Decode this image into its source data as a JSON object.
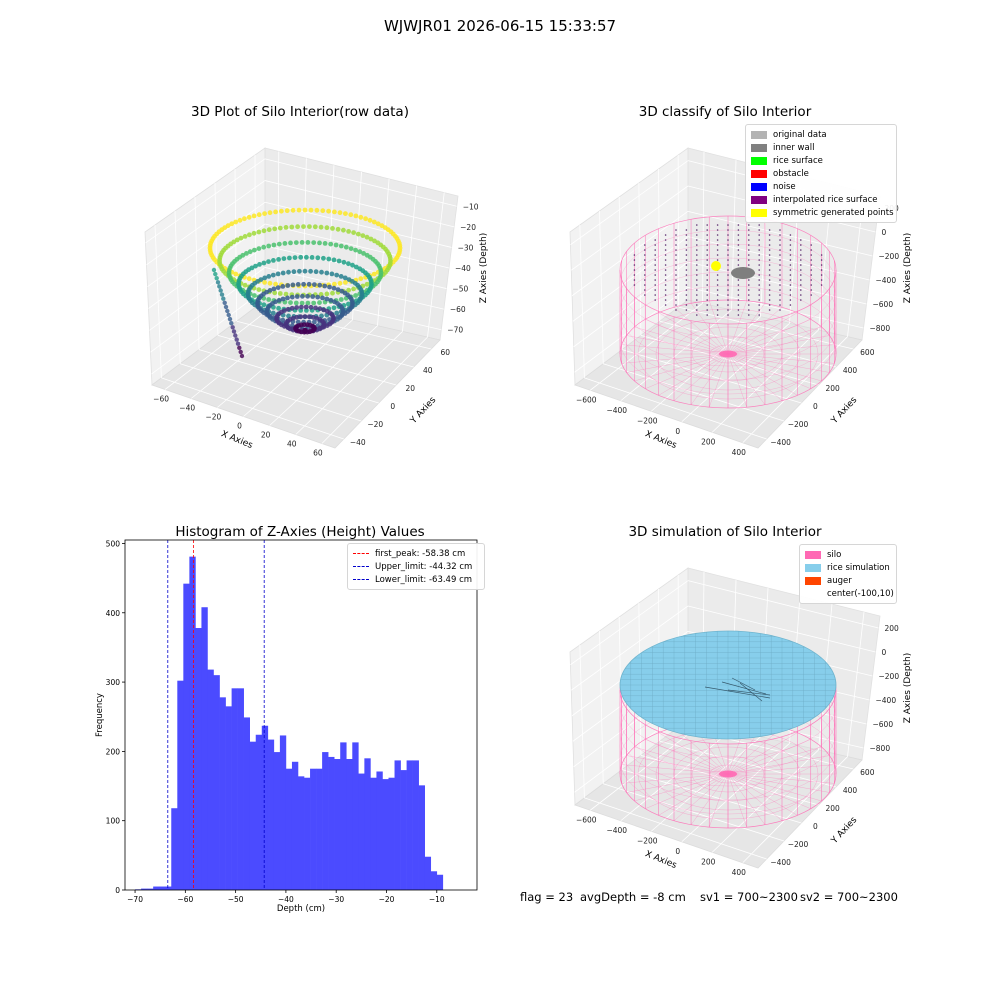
{
  "figure": {
    "suptitle": "WJWJR01 2026-06-15 15:33:57",
    "footer": {
      "flag": "flag = 23",
      "avg_depth": "avgDepth = -8 cm",
      "sv1": "sv1 = 700~2300",
      "sv2": "sv2 = 700~2300"
    }
  },
  "colors": {
    "silo": "#ff69b4",
    "histogram_bar": "#4b4bff",
    "first_peak_line": "#ff0000",
    "limit_lines": "#0000cc",
    "rice_simulation": "#87ceeb",
    "auger": "#ff4500"
  },
  "chart_data": [
    {
      "type": "scatter",
      "projection": "3d",
      "title": "3D Plot of Silo Interior(row data)",
      "xlabel": "X Axies",
      "ylabel": "Y Axies",
      "zlabel": "Z Axies (Depth)",
      "x_ticks": [
        "−60",
        "−40",
        "−20",
        "0",
        "20",
        "40",
        "60"
      ],
      "y_ticks": [
        "−40",
        "−20",
        "0",
        "20",
        "40",
        "60"
      ],
      "z_ticks": [
        "−70",
        "−60",
        "−50",
        "−40",
        "−30",
        "−20",
        "−10"
      ],
      "xlim": [
        -70,
        65
      ],
      "ylim": [
        -50,
        65
      ],
      "zlim": [
        -75,
        -5
      ],
      "colormap": "viridis",
      "description_points": "bowl-shaped point cloud of the silo interior, deepest near the centre at about -70 cm, rim at about -10 cm"
    },
    {
      "type": "scatter",
      "projection": "3d",
      "title": "3D classify of Silo Interior",
      "xlabel": "X Axies",
      "ylabel": "Y Axies",
      "zlabel": "Z Axies (Depth)",
      "x_ticks": [
        "−600",
        "−400",
        "−200",
        "0",
        "200",
        "400"
      ],
      "y_ticks": [
        "−400",
        "−200",
        "0",
        "200",
        "400",
        "600"
      ],
      "z_ticks": [
        "−800",
        "−600",
        "−400",
        "−200",
        "0",
        "200"
      ],
      "legend": [
        {
          "label": "original data",
          "color": "#b3b3b3"
        },
        {
          "label": "inner wall",
          "color": "#808080"
        },
        {
          "label": "rice surface",
          "color": "#00ff00"
        },
        {
          "label": "obstacle",
          "color": "#ff0000"
        },
        {
          "label": "noise",
          "color": "#0000ff"
        },
        {
          "label": "interpolated rice surface",
          "color": "#800080"
        },
        {
          "label": "symmetric generated points",
          "color": "#ffff00"
        }
      ]
    },
    {
      "type": "bar",
      "title": "Histogram of Z-Axies (Height) Values",
      "xlabel": "Depth (cm)",
      "ylabel": "Frequency",
      "xlim": [
        -72,
        -2
      ],
      "ylim": [
        0,
        505
      ],
      "x_ticks": [
        -70,
        -60,
        -50,
        -40,
        -30,
        -20,
        -10
      ],
      "y_ticks": [
        0,
        100,
        200,
        300,
        400,
        500
      ],
      "x_tick_labels": [
        "−70",
        "−60",
        "−50",
        "−40",
        "−30",
        "−20",
        "−10"
      ],
      "bin_width": 1.2,
      "bin_start": -70.0,
      "values": [
        1,
        2,
        2,
        5,
        5,
        5,
        118,
        302,
        442,
        481,
        378,
        408,
        318,
        310,
        278,
        265,
        291,
        291,
        249,
        214,
        224,
        237,
        217,
        199,
        223,
        175,
        185,
        164,
        162,
        175,
        175,
        199,
        192,
        189,
        213,
        189,
        213,
        168,
        190,
        162,
        171,
        160,
        162,
        187,
        173,
        187,
        187,
        151,
        48,
        27,
        22
      ],
      "vlines": [
        {
          "label": "first_peak: -58.38 cm",
          "x": -58.38,
          "color": "#ff0000"
        },
        {
          "label": "Upper_limit: -44.32 cm",
          "x": -44.32,
          "color": "#0000cc"
        },
        {
          "label": "Lower_limit: -63.49 cm",
          "x": -63.49,
          "color": "#0000cc"
        }
      ],
      "legend_position": "top-right"
    },
    {
      "type": "surface",
      "projection": "3d",
      "title": "3D simulation of Silo Interior",
      "xlabel": "X Axies",
      "ylabel": "Y Axies",
      "zlabel": "Z Axies (Depth)",
      "x_ticks": [
        "−600",
        "−400",
        "−200",
        "0",
        "200",
        "400"
      ],
      "y_ticks": [
        "−400",
        "−200",
        "0",
        "200",
        "400",
        "600"
      ],
      "z_ticks": [
        "−800",
        "−600",
        "−400",
        "−200",
        "0",
        "200"
      ],
      "legend": [
        {
          "label": "silo",
          "color": "#ff69b4"
        },
        {
          "label": "rice simulation",
          "color": "#87ceeb"
        },
        {
          "label": "auger",
          "color": "#ff4500"
        },
        {
          "label": "center(-100,10)",
          "color": ""
        }
      ]
    }
  ]
}
